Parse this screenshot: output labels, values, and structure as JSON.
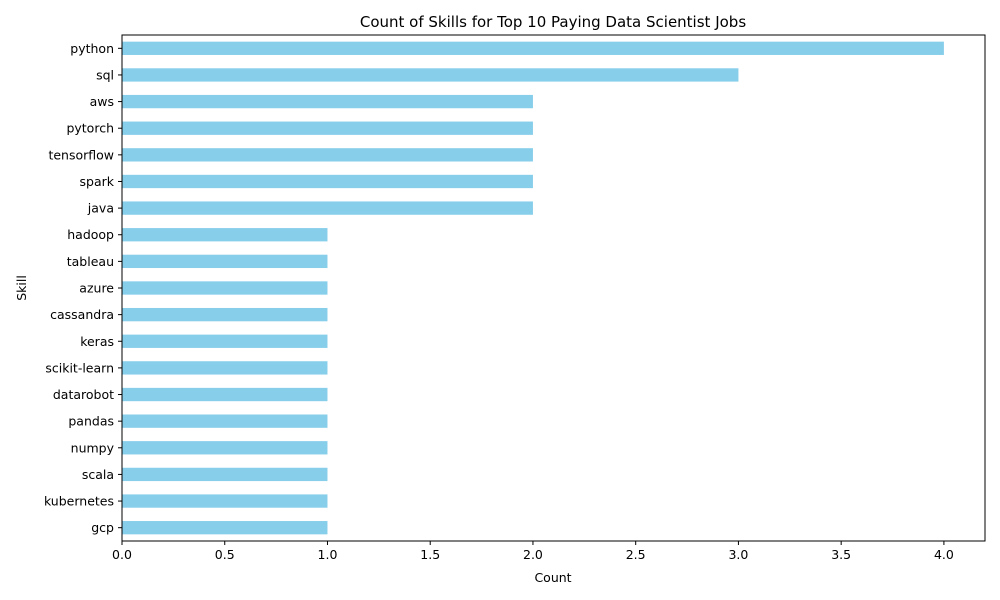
{
  "chart_data": {
    "type": "bar",
    "orientation": "horizontal",
    "title": "Count of Skills for Top 10 Paying Data Scientist Jobs",
    "xlabel": "Count",
    "ylabel": "Skill",
    "xlim": [
      0,
      4.2
    ],
    "xticks": [
      "0.0",
      "0.5",
      "1.0",
      "1.5",
      "2.0",
      "2.5",
      "3.0",
      "3.5",
      "4.0"
    ],
    "categories": [
      "python",
      "sql",
      "aws",
      "pytorch",
      "tensorflow",
      "spark",
      "java",
      "hadoop",
      "tableau",
      "azure",
      "cassandra",
      "keras",
      "scikit-learn",
      "datarobot",
      "pandas",
      "numpy",
      "scala",
      "kubernetes",
      "gcp"
    ],
    "values": [
      4,
      3,
      2,
      2,
      2,
      2,
      2,
      1,
      1,
      1,
      1,
      1,
      1,
      1,
      1,
      1,
      1,
      1,
      1
    ],
    "bar_color": "#87CEEB",
    "grid": false
  }
}
